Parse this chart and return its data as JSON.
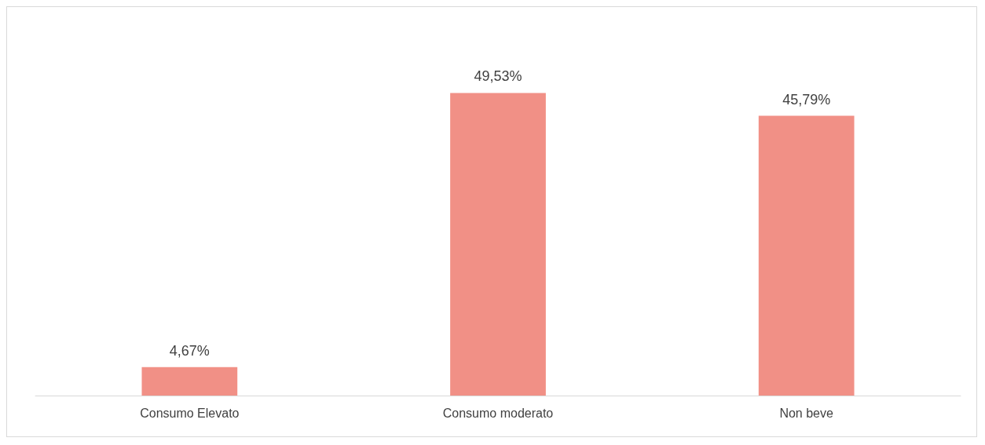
{
  "chart_data": {
    "type": "bar",
    "categories": [
      "Consumo Elevato",
      "Consumo moderato",
      "Non beve"
    ],
    "values": [
      4.67,
      49.53,
      45.79
    ],
    "color": "#f19086",
    "value_labels": [
      "4,67%",
      "49,53%",
      "45,79%"
    ]
  }
}
